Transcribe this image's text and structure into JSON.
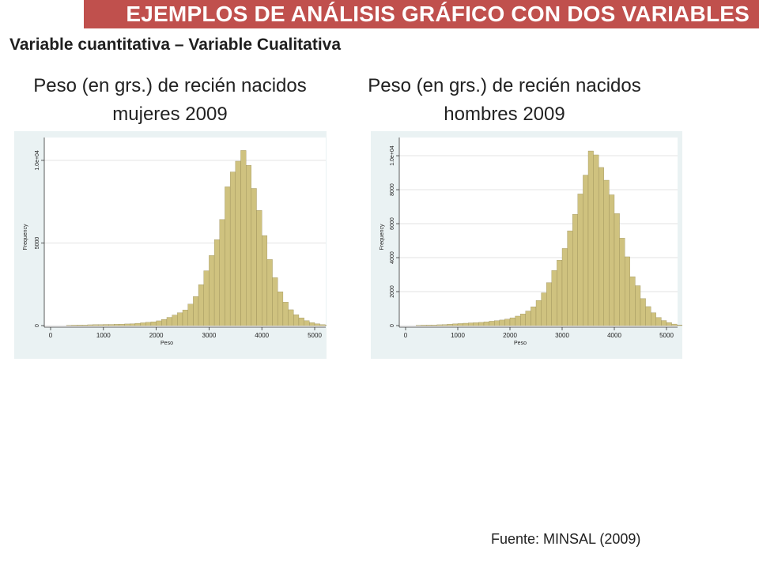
{
  "header": {
    "title": "EJEMPLOS DE ANÁLISIS GRÁFICO CON DOS VARIABLES"
  },
  "subtitle": "Variable cuantitativa – Variable Cualitativa",
  "source": "Fuente: MINSAL (2009)",
  "colors": {
    "title_bar": "#c0504d",
    "bar_fill": "#cfc27f",
    "bar_stroke": "#8a7f4a",
    "panel_bg": "#eaf2f3"
  },
  "chart_data": [
    {
      "type": "bar",
      "title": "Peso (en grs.) de recién nacidos mujeres 2009",
      "xlabel": "Peso",
      "ylabel": "Frequency",
      "xlim": [
        0,
        5000
      ],
      "ylim": [
        0,
        11000
      ],
      "x_ticks": [
        "0",
        "1000",
        "2000",
        "3000",
        "4000",
        "5000"
      ],
      "y_ticks": [
        {
          "value": 0,
          "label": "0"
        },
        {
          "value": 5000,
          "label": "5000"
        },
        {
          "value": 10000,
          "label": "1.0e+04"
        }
      ],
      "grid": true,
      "bin_start": 300,
      "bin_width": 100,
      "values": [
        20,
        30,
        40,
        40,
        50,
        60,
        60,
        70,
        70,
        80,
        90,
        100,
        110,
        140,
        170,
        200,
        230,
        290,
        370,
        500,
        640,
        780,
        950,
        1300,
        1760,
        2480,
        3320,
        4240,
        5200,
        6420,
        8400,
        9300,
        9950,
        10600,
        9700,
        8300,
        6970,
        5450,
        4000,
        2900,
        2050,
        1420,
        960,
        660,
        470,
        300,
        180,
        110,
        60,
        30
      ]
    },
    {
      "type": "bar",
      "title": "Peso (en grs.) de recién nacidos hombres 2009",
      "xlabel": "Peso",
      "ylabel": "Frequency",
      "xlim": [
        0,
        5000
      ],
      "ylim": [
        0,
        10700
      ],
      "x_ticks": [
        "0",
        "1000",
        "2000",
        "3000",
        "4000",
        "5000"
      ],
      "y_ticks": [
        {
          "value": 0,
          "label": "0"
        },
        {
          "value": 2000,
          "label": "2000"
        },
        {
          "value": 4000,
          "label": "4000"
        },
        {
          "value": 6000,
          "label": "6000"
        },
        {
          "value": 8000,
          "label": "8000"
        },
        {
          "value": 10000,
          "label": "1.0e+04"
        }
      ],
      "grid": true,
      "bin_start": 200,
      "bin_width": 100,
      "values": [
        20,
        30,
        40,
        40,
        50,
        60,
        80,
        100,
        120,
        140,
        160,
        170,
        190,
        220,
        260,
        290,
        330,
        380,
        460,
        560,
        690,
        860,
        1110,
        1480,
        1930,
        2530,
        3240,
        3850,
        4540,
        5580,
        6550,
        7750,
        8860,
        10280,
        10050,
        9310,
        8560,
        7700,
        6600,
        5150,
        4050,
        2880,
        2350,
        1590,
        1120,
        760,
        480,
        300,
        180,
        90,
        40
      ]
    }
  ]
}
